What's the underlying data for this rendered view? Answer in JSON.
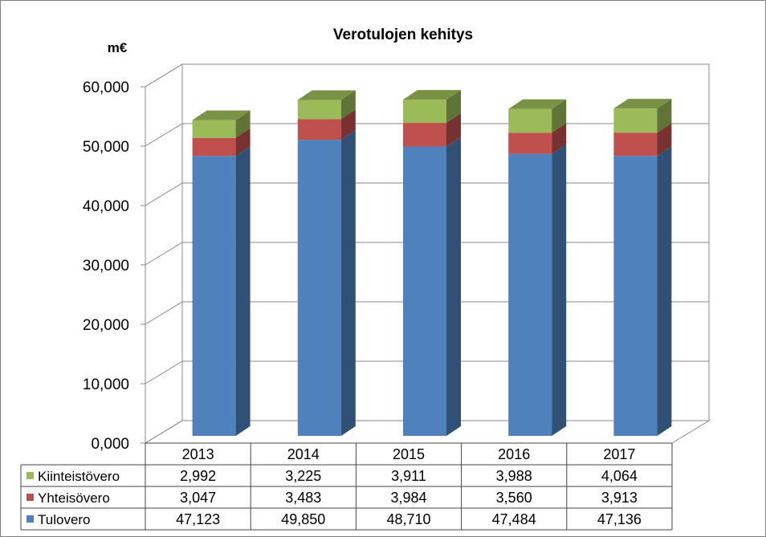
{
  "chart_data": {
    "type": "bar",
    "stacked": true,
    "three_d": true,
    "title": "Verotulojen kehitys",
    "ylabel": "m€",
    "xlabel": "",
    "categories": [
      "2013",
      "2014",
      "2015",
      "2016",
      "2017"
    ],
    "series": [
      {
        "name": "Tulovero",
        "values": [
          47123,
          49850,
          48710,
          47484,
          47136
        ],
        "labels": [
          "47,123",
          "49,850",
          "48,710",
          "47,484",
          "47,136"
        ],
        "color": "#4f81bd"
      },
      {
        "name": "Yhteisövero",
        "values": [
          3047,
          3483,
          3984,
          3560,
          3913
        ],
        "labels": [
          "3,047",
          "3,483",
          "3,984",
          "3,560",
          "3,913"
        ],
        "color": "#c0504d"
      },
      {
        "name": "Kiinteistövero",
        "values": [
          2992,
          3225,
          3911,
          3988,
          4064
        ],
        "labels": [
          "2,992",
          "3,225",
          "3,911",
          "3,988",
          "4,064"
        ],
        "color": "#9bbb59"
      }
    ],
    "ylim": [
      0,
      60000
    ],
    "yticks": [
      0,
      10000,
      20000,
      30000,
      40000,
      50000,
      60000
    ],
    "ytick_labels": [
      "0,000",
      "10,000",
      "20,000",
      "30,000",
      "40,000",
      "50,000",
      "60,000"
    ],
    "grid": true,
    "data_table": true,
    "legend_in_table": true
  }
}
